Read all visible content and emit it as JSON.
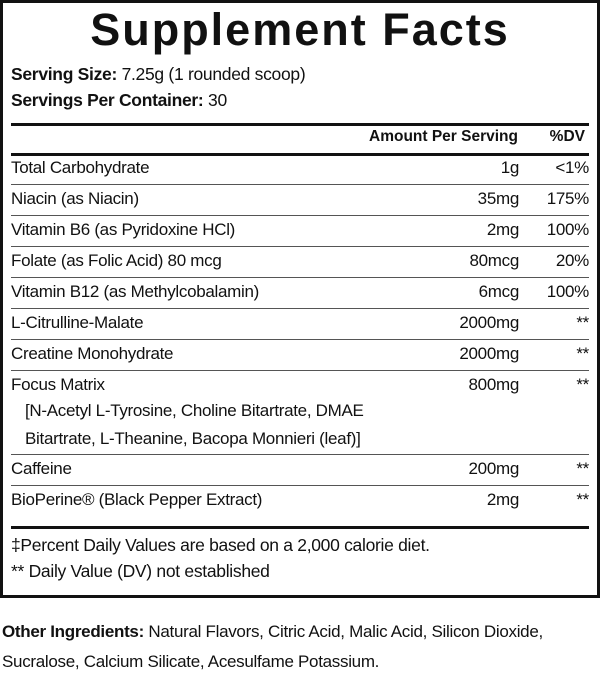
{
  "title": "Supplement Facts",
  "serving_size": {
    "label": "Serving Size:",
    "value": "7.25g (1 rounded scoop)"
  },
  "servings_per_container": {
    "label": "Servings Per Container:",
    "value": "30"
  },
  "header": {
    "amount": "Amount Per Serving",
    "dv": "%DV"
  },
  "rows": [
    {
      "name": "Total Carbohydrate",
      "amount": "1g",
      "dv": "<1%"
    },
    {
      "name": "Niacin (as Niacin)",
      "amount": "35mg",
      "dv": "175%"
    },
    {
      "name": "Vitamin B6 (as Pyridoxine HCl)",
      "amount": "2mg",
      "dv": "100%"
    },
    {
      "name": "Folate (as Folic Acid) 80 mcg",
      "amount": "80mcg",
      "dv": "20%"
    },
    {
      "name": "Vitamin B12 (as Methylcobalamin)",
      "amount": "6mcg",
      "dv": "100%"
    },
    {
      "name": "L-Citrulline-Malate",
      "amount": "2000mg",
      "dv": "**"
    },
    {
      "name": "Creatine Monohydrate",
      "amount": "2000mg",
      "dv": "**"
    },
    {
      "name": "Focus Matrix",
      "amount": "800mg",
      "dv": "**",
      "sub": [
        "[N-Acetyl L-Tyrosine, Choline Bitartrate, DMAE",
        "Bitartrate, L-Theanine, Bacopa Monnieri (leaf)]"
      ]
    },
    {
      "name": "Caffeine",
      "amount": "200mg",
      "dv": "**"
    },
    {
      "name": "BioPerine® (Black Pepper Extract)",
      "amount": "2mg",
      "dv": "**"
    }
  ],
  "footnotes": [
    "‡Percent Daily Values are based on a 2,000 calorie diet.",
    "** Daily Value (DV) not established"
  ],
  "other_ingredients": {
    "label": "Other Ingredients:",
    "value": "Natural Flavors, Citric Acid, Malic Acid, Silicon Dioxide, Sucralose, Calcium Silicate, Acesulfame Potassium."
  }
}
